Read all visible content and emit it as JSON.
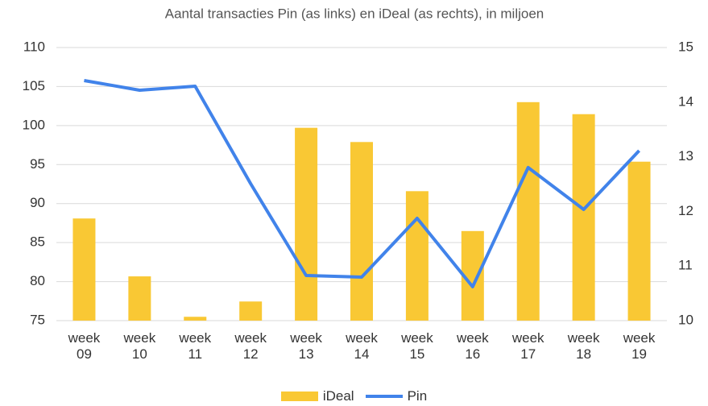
{
  "chart_data": {
    "type": "bar_line",
    "title": "Aantal transacties Pin (as links) en iDeal (as rechts), in miljoen",
    "categories": [
      "week 09",
      "week 10",
      "week 11",
      "week 12",
      "week 13",
      "week 14",
      "week 15",
      "week 16",
      "week 17",
      "week 18",
      "week 19"
    ],
    "series": [
      {
        "name": "iDeal",
        "type": "bar",
        "axis": "y2",
        "color": "#F9C834",
        "values": [
          11.87,
          10.81,
          10.07,
          10.35,
          13.53,
          13.27,
          12.37,
          11.64,
          14.0,
          13.78,
          12.91
        ]
      },
      {
        "name": "Pin",
        "type": "line",
        "axis": "y",
        "color": "#4183EA",
        "values": [
          105.77,
          104.53,
          105.04,
          92.55,
          80.78,
          80.58,
          88.11,
          79.34,
          94.62,
          89.25,
          96.78
        ]
      }
    ],
    "ylim": [
      75,
      110
    ],
    "yticks": [
      75,
      80,
      85,
      90,
      95,
      100,
      105,
      110
    ],
    "y2lim": [
      10,
      15
    ],
    "y2ticks": [
      10,
      11,
      12,
      13,
      14,
      15
    ],
    "grid": true,
    "legend": "bottom"
  }
}
